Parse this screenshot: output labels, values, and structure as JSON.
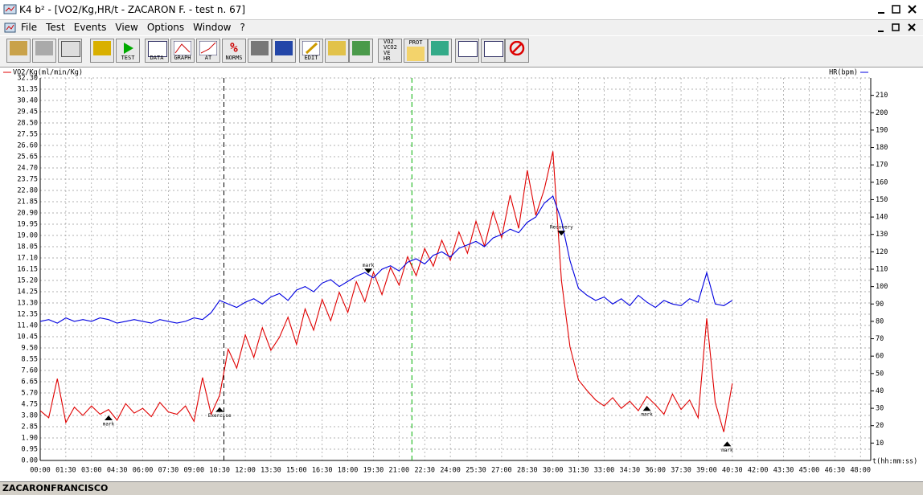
{
  "window": {
    "title": "K4 b² - [VO2/Kg,HR/t - ZACARON F. - test n. 67]"
  },
  "menu": [
    "File",
    "Test",
    "Events",
    "View",
    "Options",
    "Window",
    "?"
  ],
  "toolbar": {
    "test": "TEST",
    "data": "DATA",
    "graph": "GRAPH",
    "at": "AT",
    "norms": "NORMS",
    "edit": "EDIT",
    "vars": [
      "VO2",
      "VCO2",
      "VE",
      "HR"
    ],
    "prot": "PROT"
  },
  "status": "ZACARONFRANCISCO",
  "chart_data": {
    "type": "line",
    "y_label": "VO2/Kg(ml/min/Kg)",
    "y2_label": "HR(bpm)",
    "x_label": "t(hh:mm:ss)",
    "grid": true,
    "x": [
      0,
      0.5,
      1,
      1.5,
      2,
      2.5,
      3,
      3.5,
      4,
      4.5,
      5,
      5.5,
      6,
      6.5,
      7,
      7.5,
      8,
      8.5,
      9,
      9.5,
      10,
      10.5,
      11,
      11.5,
      12,
      12.5,
      13,
      13.5,
      14,
      14.5,
      15,
      15.5,
      16,
      16.5,
      17,
      17.5,
      18,
      18.5,
      19,
      19.5,
      20,
      20.5,
      21,
      21.5,
      22,
      22.5,
      23,
      23.5,
      24,
      24.5,
      25,
      25.5,
      26,
      26.5,
      27,
      27.5,
      28,
      28.5,
      29,
      29.5,
      30,
      30.5,
      31,
      31.5,
      32,
      32.5,
      33,
      33.5,
      34,
      34.5,
      35,
      35.5,
      36,
      36.5,
      37,
      37.5,
      38,
      38.5,
      39,
      39.5,
      40,
      40.5
    ],
    "series": [
      {
        "name": "VO2/Kg(ml/min/Kg)",
        "color": "#e00000",
        "axis": "y",
        "values": [
          4.2,
          3.6,
          6.9,
          3.2,
          4.5,
          3.8,
          4.6,
          3.9,
          4.3,
          3.4,
          4.8,
          4.0,
          4.4,
          3.7,
          4.9,
          4.1,
          3.9,
          4.6,
          3.3,
          7.0,
          3.9,
          5.5,
          9.4,
          7.8,
          10.6,
          8.7,
          11.2,
          9.3,
          10.4,
          12.1,
          9.8,
          12.8,
          11.0,
          13.6,
          11.8,
          14.2,
          12.5,
          15.1,
          13.4,
          15.9,
          14.0,
          16.3,
          14.8,
          17.2,
          15.6,
          17.9,
          16.4,
          18.6,
          16.9,
          19.3,
          17.5,
          20.2,
          18.1,
          21.0,
          18.8,
          22.4,
          19.6,
          24.5,
          20.7,
          22.9,
          26.1,
          15.2,
          9.6,
          6.8,
          5.9,
          5.1,
          4.6,
          5.3,
          4.4,
          5.0,
          4.2,
          5.4,
          4.7,
          3.9,
          5.6,
          4.3,
          5.1,
          3.6,
          12.0,
          4.9,
          2.4,
          6.5
        ]
      },
      {
        "name": "HR(bpm)",
        "color": "#0000e0",
        "axis": "y2",
        "values": [
          80,
          81,
          79,
          82,
          80,
          81,
          80,
          82,
          81,
          79,
          80,
          81,
          80,
          79,
          81,
          80,
          79,
          80,
          82,
          81,
          85,
          92,
          90,
          88,
          91,
          93,
          90,
          94,
          96,
          92,
          98,
          100,
          97,
          102,
          104,
          100,
          103,
          106,
          108,
          105,
          110,
          112,
          109,
          114,
          116,
          113,
          118,
          120,
          117,
          122,
          124,
          126,
          123,
          128,
          130,
          133,
          131,
          137,
          140,
          148,
          152,
          138,
          115,
          99,
          95,
          92,
          94,
          90,
          93,
          89,
          95,
          91,
          88,
          92,
          90,
          89,
          93,
          91,
          108,
          90,
          89,
          92
        ]
      }
    ],
    "xlim": [
      0,
      48.6
    ],
    "xticks": [
      {
        "value": 0,
        "label": "00:00"
      },
      {
        "value": 1.5,
        "label": "01:30"
      },
      {
        "value": 3,
        "label": "03:00"
      },
      {
        "value": 4.5,
        "label": "04:30"
      },
      {
        "value": 6,
        "label": "06:00"
      },
      {
        "value": 7.5,
        "label": "07:30"
      },
      {
        "value": 9,
        "label": "09:00"
      },
      {
        "value": 10.5,
        "label": "10:30"
      },
      {
        "value": 12,
        "label": "12:00"
      },
      {
        "value": 13.5,
        "label": "13:30"
      },
      {
        "value": 15,
        "label": "15:00"
      },
      {
        "value": 16.5,
        "label": "16:30"
      },
      {
        "value": 18,
        "label": "18:00"
      },
      {
        "value": 19.5,
        "label": "19:30"
      },
      {
        "value": 21,
        "label": "21:00"
      },
      {
        "value": 22.5,
        "label": "22:30"
      },
      {
        "value": 24,
        "label": "24:00"
      },
      {
        "value": 25.5,
        "label": "25:30"
      },
      {
        "value": 27,
        "label": "27:00"
      },
      {
        "value": 28.5,
        "label": "28:30"
      },
      {
        "value": 30,
        "label": "30:00"
      },
      {
        "value": 31.5,
        "label": "31:30"
      },
      {
        "value": 33,
        "label": "33:00"
      },
      {
        "value": 34.5,
        "label": "34:30"
      },
      {
        "value": 36,
        "label": "36:00"
      },
      {
        "value": 37.5,
        "label": "37:30"
      },
      {
        "value": 39,
        "label": "39:00"
      },
      {
        "value": 40.5,
        "label": "40:30"
      },
      {
        "value": 42,
        "label": "42:00"
      },
      {
        "value": 43.5,
        "label": "43:30"
      },
      {
        "value": 45,
        "label": "45:00"
      },
      {
        "value": 46.5,
        "label": "46:30"
      },
      {
        "value": 48,
        "label": "48:00"
      }
    ],
    "ylim": [
      0,
      32.3
    ],
    "yticks": [
      {
        "value": 0,
        "label": "0.00"
      },
      {
        "value": 0.95,
        "label": "0.95"
      },
      {
        "value": 1.9,
        "label": "1.90"
      },
      {
        "value": 2.85,
        "label": "2.85"
      },
      {
        "value": 3.8,
        "label": "3.80"
      },
      {
        "value": 4.75,
        "label": "4.75"
      },
      {
        "value": 5.7,
        "label": "5.70"
      },
      {
        "value": 6.65,
        "label": "6.65"
      },
      {
        "value": 7.6,
        "label": "7.60"
      },
      {
        "value": 8.55,
        "label": "8.55"
      },
      {
        "value": 9.5,
        "label": "9.50"
      },
      {
        "value": 10.45,
        "label": "10.45"
      },
      {
        "value": 11.4,
        "label": "11.40"
      },
      {
        "value": 12.35,
        "label": "12.35"
      },
      {
        "value": 13.3,
        "label": "13.30"
      },
      {
        "value": 14.25,
        "label": "14.25"
      },
      {
        "value": 15.2,
        "label": "15.20"
      },
      {
        "value": 16.15,
        "label": "16.15"
      },
      {
        "value": 17.1,
        "label": "17.10"
      },
      {
        "value": 18.05,
        "label": "18.05"
      },
      {
        "value": 19,
        "label": "19.00"
      },
      {
        "value": 19.95,
        "label": "19.95"
      },
      {
        "value": 20.9,
        "label": "20.90"
      },
      {
        "value": 21.85,
        "label": "21.85"
      },
      {
        "value": 22.8,
        "label": "22.80"
      },
      {
        "value": 23.75,
        "label": "23.75"
      },
      {
        "value": 24.7,
        "label": "24.70"
      },
      {
        "value": 25.65,
        "label": "25.65"
      },
      {
        "value": 26.6,
        "label": "26.60"
      },
      {
        "value": 27.55,
        "label": "27.55"
      },
      {
        "value": 28.5,
        "label": "28.50"
      },
      {
        "value": 29.45,
        "label": "29.45"
      },
      {
        "value": 30.4,
        "label": "30.40"
      },
      {
        "value": 31.35,
        "label": "31.35"
      },
      {
        "value": 32.3,
        "label": "32.30"
      }
    ],
    "y2lim": [
      0,
      220
    ],
    "y2ticks": [
      10,
      20,
      30,
      40,
      50,
      60,
      70,
      80,
      90,
      100,
      110,
      120,
      130,
      140,
      150,
      160,
      170,
      180,
      190,
      200,
      210
    ],
    "events": [
      {
        "x": 10.75,
        "color": "#000000"
      },
      {
        "x": 21.75,
        "color": "#00b000"
      }
    ],
    "annotations": [
      {
        "text": "mark",
        "x": 4,
        "y": 3.8,
        "dir": "up"
      },
      {
        "text": "Exercise",
        "x": 10.5,
        "y": 4.5,
        "dir": "up"
      },
      {
        "text": "mark",
        "x": 19.2,
        "y": 16.2,
        "dir": "down"
      },
      {
        "text": "Recovery",
        "x": 30.5,
        "y": 19.4,
        "dir": "down"
      },
      {
        "text": "mark",
        "x": 35.5,
        "y": 4.6,
        "dir": "up"
      },
      {
        "text": "mark",
        "x": 40.2,
        "y": 1.6,
        "dir": "up"
      }
    ]
  }
}
